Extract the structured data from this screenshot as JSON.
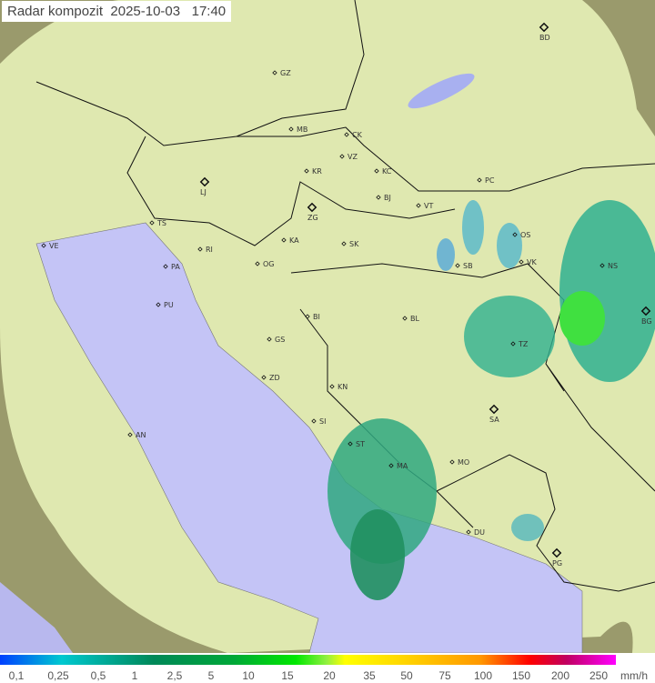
{
  "title": "Radar kompozit  2025-10-03   17:40",
  "legend": {
    "unit": "mm/h",
    "ticks": [
      "0,1",
      "0,25",
      "0,5",
      "1",
      "2,5",
      "5",
      "10",
      "15",
      "20",
      "35",
      "50",
      "75",
      "100",
      "150",
      "200",
      "250"
    ]
  },
  "colors": {
    "sea": "#c4c4f6",
    "land": "#dfe8b0",
    "outside": "#9a9a6c",
    "radar_light": "#40b0a0",
    "radar_mid": "#20a060",
    "radar_strong": "#30e030"
  },
  "cities": [
    "BD",
    "GZ",
    "MB",
    "CK",
    "VZ",
    "KR",
    "KC",
    "PC",
    "LJ",
    "BJ",
    "VT",
    "ZG",
    "TS",
    "VE",
    "RI",
    "KA",
    "SK",
    "NS",
    "SB",
    "PA",
    "OG",
    "VK",
    "OS",
    "BG",
    "PU",
    "BI",
    "BL",
    "TZ",
    "GS",
    "ZD",
    "KN",
    "SA",
    "SI",
    "AN",
    "ST",
    "MA",
    "MO",
    "DU",
    "PG"
  ]
}
